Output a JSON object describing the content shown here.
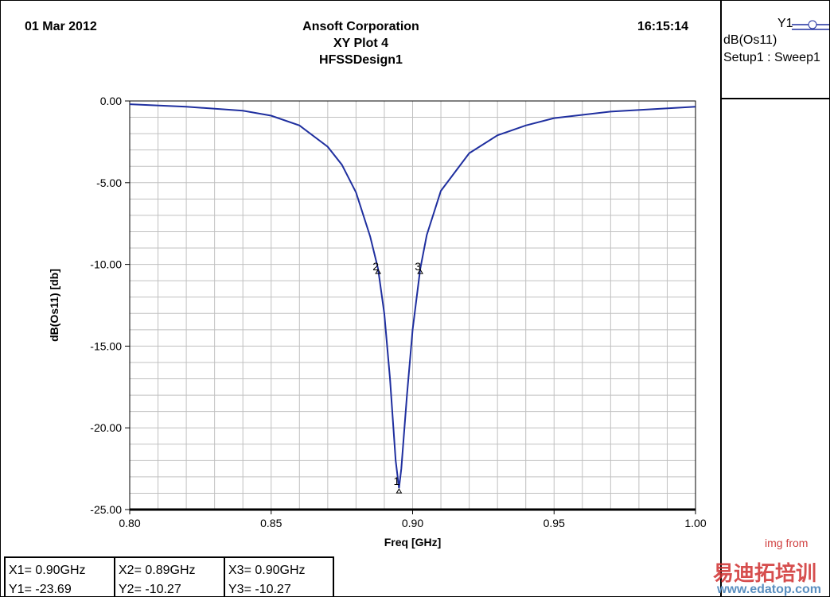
{
  "header": {
    "date": "01 Mar 2012",
    "company": "Ansoft Corporation",
    "plot_name": "XY Plot 4",
    "design": "HFSSDesign1",
    "time": "16:15:14"
  },
  "legend": {
    "trace_axis": "Y1",
    "trace_name": "dB(Os11)",
    "trace_source": "Setup1 : Sweep1",
    "line_color": "#1f2f9f"
  },
  "markers": [
    {
      "x_label": "X1= 0.90GHz",
      "y_label": "Y1= -23.69",
      "id": "1"
    },
    {
      "x_label": "X2= 0.89GHz",
      "y_label": "Y2= -10.27",
      "id": "2"
    },
    {
      "x_label": "X3= 0.90GHz",
      "y_label": "Y3= -10.27",
      "id": "3"
    }
  ],
  "watermark": {
    "line1": "img from",
    "line2": "易迪拓培训",
    "line3": "www.edatop.com"
  },
  "chart_data": {
    "type": "line",
    "title": "XY Plot 4",
    "xlabel": "Freq [GHz]",
    "ylabel": "dB(Os11) [db]",
    "xlim": [
      0.8,
      1.0
    ],
    "ylim": [
      -25,
      0
    ],
    "xticks": [
      "0.80",
      "0.85",
      "0.90",
      "0.95",
      "1.00"
    ],
    "yticks": [
      "0.00",
      "-5.00",
      "-10.00",
      "-15.00",
      "-20.00",
      "-25.00"
    ],
    "grid": true,
    "series": [
      {
        "name": "dB(Os11)",
        "x": [
          0.8,
          0.82,
          0.84,
          0.85,
          0.86,
          0.87,
          0.875,
          0.88,
          0.885,
          0.8878,
          0.89,
          0.892,
          0.894,
          0.8952,
          0.896,
          0.898,
          0.9,
          0.9027,
          0.905,
          0.91,
          0.92,
          0.93,
          0.94,
          0.95,
          0.97,
          1.0
        ],
        "y": [
          -0.2,
          -0.35,
          -0.6,
          -0.9,
          -1.5,
          -2.8,
          -3.9,
          -5.6,
          -8.3,
          -10.27,
          -13,
          -17,
          -22,
          -23.69,
          -22.5,
          -18,
          -14,
          -10.27,
          -8.2,
          -5.5,
          -3.2,
          -2.1,
          -1.5,
          -1.05,
          -0.65,
          -0.35
        ]
      }
    ],
    "markers": [
      {
        "label": "1",
        "x": 0.8952,
        "y": -23.69
      },
      {
        "label": "2",
        "x": 0.8878,
        "y": -10.27
      },
      {
        "label": "3",
        "x": 0.9027,
        "y": -10.27
      }
    ]
  }
}
